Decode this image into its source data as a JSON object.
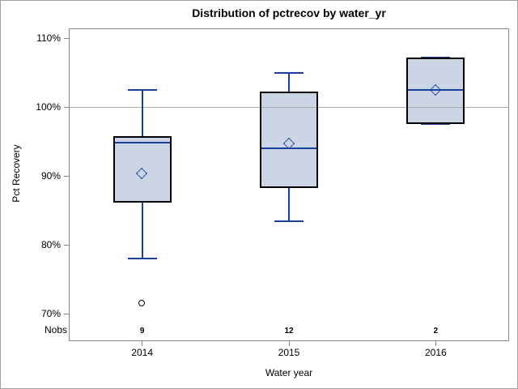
{
  "chart_data": {
    "type": "boxplot",
    "title": "Distribution of pctrecov by water_yr",
    "xlabel": "Water year",
    "ylabel": "Pct Recovery",
    "categories": [
      "2014",
      "2015",
      "2016"
    ],
    "nobs_label": "Nobs",
    "nobs": [
      "9",
      "12",
      "2"
    ],
    "y_axis": {
      "min": 66,
      "max": 111.5,
      "ticks": [
        70,
        80,
        90,
        100,
        110
      ],
      "tick_suffix": "%"
    },
    "reference_line": 100,
    "grid": "off",
    "legend": "none",
    "series": [
      {
        "category": "2014",
        "n": 9,
        "whisker_low": 78,
        "q1": 86.2,
        "median": 94.9,
        "q3": 95.8,
        "whisker_high": 102.5,
        "mean": 90.4,
        "outliers": [
          71.5
        ]
      },
      {
        "category": "2015",
        "n": 12,
        "whisker_low": 83.5,
        "q1": 88.3,
        "median": 94,
        "q3": 102.3,
        "whisker_high": 105,
        "mean": 94.7,
        "outliers": []
      },
      {
        "category": "2016",
        "n": 2,
        "whisker_low": 97.6,
        "q1": 97.6,
        "median": 102.5,
        "q3": 107.2,
        "whisker_high": 107.2,
        "mean": 102.5,
        "outliers": []
      }
    ],
    "colors": {
      "box_fill": "#ccd5e4",
      "box_border": "#000000",
      "whisker": "#16409c",
      "median": "#16409c",
      "mean_marker": "#16409c",
      "outlier": "#000000",
      "reference_line": "#ababab",
      "axis": "#878787",
      "figure_border": "#a3a3a3",
      "text": "#000000"
    }
  }
}
